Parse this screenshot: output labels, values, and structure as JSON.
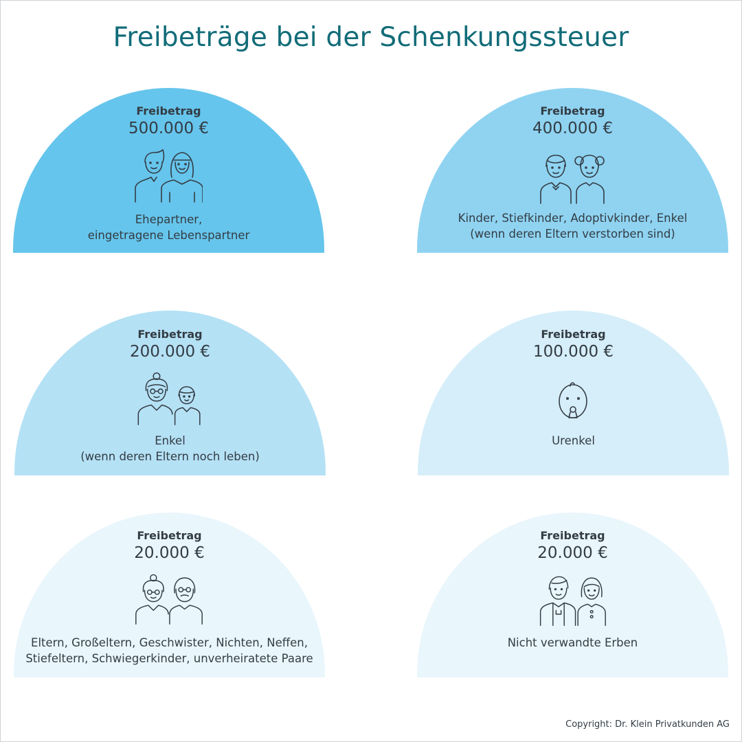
{
  "title": "Freibeträge bei der Schenkungssteuer",
  "copyright": "Copyright: Dr. Klein Privatkunden AG",
  "cards": [
    {
      "label": "Freibetrag",
      "amount": "500.000 €",
      "line1": "Ehepartner,",
      "line2": "eingetragene Lebenspartner",
      "color": "#66c5ec",
      "icon": "couple-icon"
    },
    {
      "label": "Freibetrag",
      "amount": "400.000 €",
      "line1": "Kinder, Stiefkinder, Adoptivkinder, Enkel",
      "line2": "(wenn deren Eltern verstorben sind)",
      "color": "#8fd3f1",
      "icon": "children-icon"
    },
    {
      "label": "Freibetrag",
      "amount": "200.000 €",
      "line1": "Enkel",
      "line2": "(wenn deren Eltern noch leben)",
      "color": "#b5e1f5",
      "icon": "grandmother-grandchild-icon"
    },
    {
      "label": "Freibetrag",
      "amount": "100.000 €",
      "line1": "Urenkel",
      "line2": "",
      "color": "#d6eef9",
      "icon": "baby-icon"
    },
    {
      "label": "Freibetrag",
      "amount": "20.000 €",
      "line1": "Eltern, Großeltern, Geschwister, Nichten, Neffen,",
      "line2": "Stiefeltern, Schwiegerkinder, unverheiratete Paare",
      "color": "#e9f6fc",
      "icon": "grandparents-icon"
    },
    {
      "label": "Freibetrag",
      "amount": "20.000 €",
      "line1": "Nicht verwandte Erben",
      "line2": "",
      "color": "#e9f6fc",
      "icon": "unrelated-persons-icon"
    }
  ]
}
